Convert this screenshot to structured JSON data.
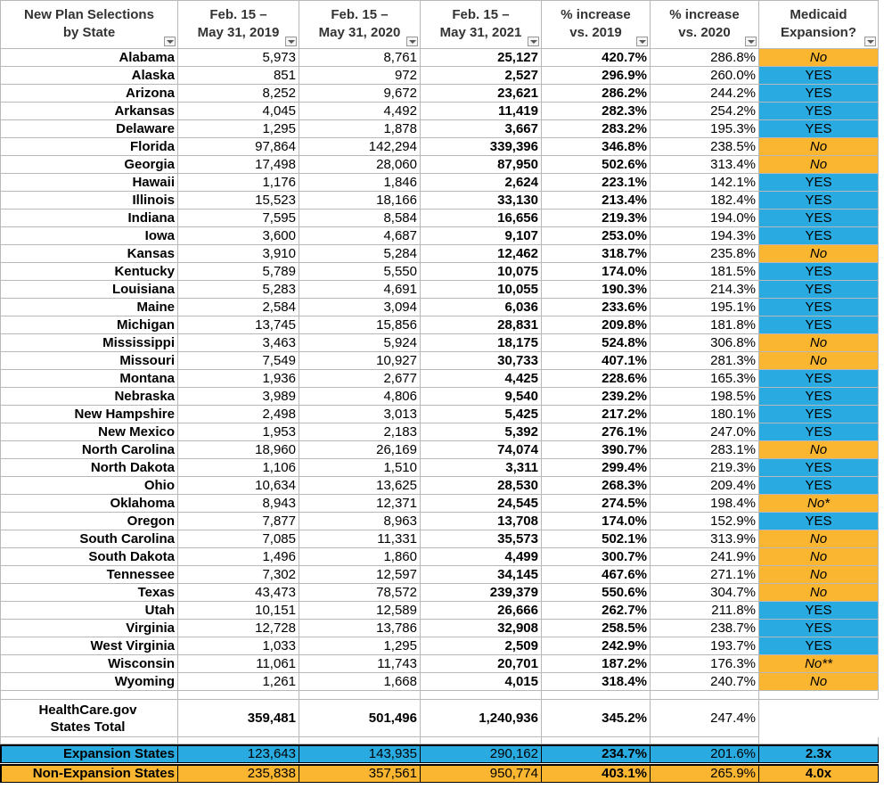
{
  "header": [
    [
      "New Plan Selections",
      "by State"
    ],
    [
      "Feb. 15 –",
      "May 31, 2019"
    ],
    [
      "Feb. 15 –",
      "May 31, 2020"
    ],
    [
      "Feb. 15 –",
      "May 31, 2021"
    ],
    [
      "% increase",
      "vs. 2019"
    ],
    [
      "% increase",
      "vs. 2020"
    ],
    [
      "Medicaid",
      "Expansion?"
    ]
  ],
  "colors": {
    "expansion": "#29abe2",
    "non_expansion": "#fbb631"
  },
  "rows": [
    {
      "cells": [
        "Alabama",
        "5,973",
        "8,761",
        "25,127",
        "420.7%",
        "286.8%",
        "No"
      ],
      "expansion": false
    },
    {
      "cells": [
        "Alaska",
        "851",
        "972",
        "2,527",
        "296.9%",
        "260.0%",
        "YES"
      ],
      "expansion": true
    },
    {
      "cells": [
        "Arizona",
        "8,252",
        "9,672",
        "23,621",
        "286.2%",
        "244.2%",
        "YES"
      ],
      "expansion": true
    },
    {
      "cells": [
        "Arkansas",
        "4,045",
        "4,492",
        "11,419",
        "282.3%",
        "254.2%",
        "YES"
      ],
      "expansion": true
    },
    {
      "cells": [
        "Delaware",
        "1,295",
        "1,878",
        "3,667",
        "283.2%",
        "195.3%",
        "YES"
      ],
      "expansion": true
    },
    {
      "cells": [
        "Florida",
        "97,864",
        "142,294",
        "339,396",
        "346.8%",
        "238.5%",
        "No"
      ],
      "expansion": false
    },
    {
      "cells": [
        "Georgia",
        "17,498",
        "28,060",
        "87,950",
        "502.6%",
        "313.4%",
        "No"
      ],
      "expansion": false
    },
    {
      "cells": [
        "Hawaii",
        "1,176",
        "1,846",
        "2,624",
        "223.1%",
        "142.1%",
        "YES"
      ],
      "expansion": true
    },
    {
      "cells": [
        "Illinois",
        "15,523",
        "18,166",
        "33,130",
        "213.4%",
        "182.4%",
        "YES"
      ],
      "expansion": true
    },
    {
      "cells": [
        "Indiana",
        "7,595",
        "8,584",
        "16,656",
        "219.3%",
        "194.0%",
        "YES"
      ],
      "expansion": true
    },
    {
      "cells": [
        "Iowa",
        "3,600",
        "4,687",
        "9,107",
        "253.0%",
        "194.3%",
        "YES"
      ],
      "expansion": true
    },
    {
      "cells": [
        "Kansas",
        "3,910",
        "5,284",
        "12,462",
        "318.7%",
        "235.8%",
        "No"
      ],
      "expansion": false
    },
    {
      "cells": [
        "Kentucky",
        "5,789",
        "5,550",
        "10,075",
        "174.0%",
        "181.5%",
        "YES"
      ],
      "expansion": true
    },
    {
      "cells": [
        "Louisiana",
        "5,283",
        "4,691",
        "10,055",
        "190.3%",
        "214.3%",
        "YES"
      ],
      "expansion": true
    },
    {
      "cells": [
        "Maine",
        "2,584",
        "3,094",
        "6,036",
        "233.6%",
        "195.1%",
        "YES"
      ],
      "expansion": true
    },
    {
      "cells": [
        "Michigan",
        "13,745",
        "15,856",
        "28,831",
        "209.8%",
        "181.8%",
        "YES"
      ],
      "expansion": true
    },
    {
      "cells": [
        "Mississippi",
        "3,463",
        "5,924",
        "18,175",
        "524.8%",
        "306.8%",
        "No"
      ],
      "expansion": false
    },
    {
      "cells": [
        "Missouri",
        "7,549",
        "10,927",
        "30,733",
        "407.1%",
        "281.3%",
        "No"
      ],
      "expansion": false
    },
    {
      "cells": [
        "Montana",
        "1,936",
        "2,677",
        "4,425",
        "228.6%",
        "165.3%",
        "YES"
      ],
      "expansion": true
    },
    {
      "cells": [
        "Nebraska",
        "3,989",
        "4,806",
        "9,540",
        "239.2%",
        "198.5%",
        "YES"
      ],
      "expansion": true
    },
    {
      "cells": [
        "New Hampshire",
        "2,498",
        "3,013",
        "5,425",
        "217.2%",
        "180.1%",
        "YES"
      ],
      "expansion": true
    },
    {
      "cells": [
        "New Mexico",
        "1,953",
        "2,183",
        "5,392",
        "276.1%",
        "247.0%",
        "YES"
      ],
      "expansion": true
    },
    {
      "cells": [
        "North Carolina",
        "18,960",
        "26,169",
        "74,074",
        "390.7%",
        "283.1%",
        "No"
      ],
      "expansion": false
    },
    {
      "cells": [
        "North Dakota",
        "1,106",
        "1,510",
        "3,311",
        "299.4%",
        "219.3%",
        "YES"
      ],
      "expansion": true
    },
    {
      "cells": [
        "Ohio",
        "10,634",
        "13,625",
        "28,530",
        "268.3%",
        "209.4%",
        "YES"
      ],
      "expansion": true
    },
    {
      "cells": [
        "Oklahoma",
        "8,943",
        "12,371",
        "24,545",
        "274.5%",
        "198.4%",
        "No*"
      ],
      "expansion": false
    },
    {
      "cells": [
        "Oregon",
        "7,877",
        "8,963",
        "13,708",
        "174.0%",
        "152.9%",
        "YES"
      ],
      "expansion": true
    },
    {
      "cells": [
        "South Carolina",
        "7,085",
        "11,331",
        "35,573",
        "502.1%",
        "313.9%",
        "No"
      ],
      "expansion": false
    },
    {
      "cells": [
        "South Dakota",
        "1,496",
        "1,860",
        "4,499",
        "300.7%",
        "241.9%",
        "No"
      ],
      "expansion": false
    },
    {
      "cells": [
        "Tennessee",
        "7,302",
        "12,597",
        "34,145",
        "467.6%",
        "271.1%",
        "No"
      ],
      "expansion": false
    },
    {
      "cells": [
        "Texas",
        "43,473",
        "78,572",
        "239,379",
        "550.6%",
        "304.7%",
        "No"
      ],
      "expansion": false
    },
    {
      "cells": [
        "Utah",
        "10,151",
        "12,589",
        "26,666",
        "262.7%",
        "211.8%",
        "YES"
      ],
      "expansion": true
    },
    {
      "cells": [
        "Virginia",
        "12,728",
        "13,786",
        "32,908",
        "258.5%",
        "238.7%",
        "YES"
      ],
      "expansion": true
    },
    {
      "cells": [
        "West Virginia",
        "1,033",
        "1,295",
        "2,509",
        "242.9%",
        "193.7%",
        "YES"
      ],
      "expansion": true
    },
    {
      "cells": [
        "Wisconsin",
        "11,061",
        "11,743",
        "20,701",
        "187.2%",
        "176.3%",
        "No**"
      ],
      "expansion": false
    },
    {
      "cells": [
        "Wyoming",
        "1,261",
        "1,668",
        "4,015",
        "318.4%",
        "240.7%",
        "No"
      ],
      "expansion": false
    }
  ],
  "total": {
    "label": [
      "HealthCare.gov",
      "States Total"
    ],
    "values": [
      "359,481",
      "501,496",
      "1,240,936",
      "345.2%",
      "247.4%"
    ]
  },
  "summary": [
    {
      "cells": [
        "Expansion States",
        "123,643",
        "143,935",
        "290,162",
        "234.7%",
        "201.6%",
        "2.3x"
      ],
      "expansion": true
    },
    {
      "cells": [
        "Non-Expansion States",
        "235,838",
        "357,561",
        "950,774",
        "403.1%",
        "265.9%",
        "4.0x"
      ],
      "expansion": false
    }
  ]
}
